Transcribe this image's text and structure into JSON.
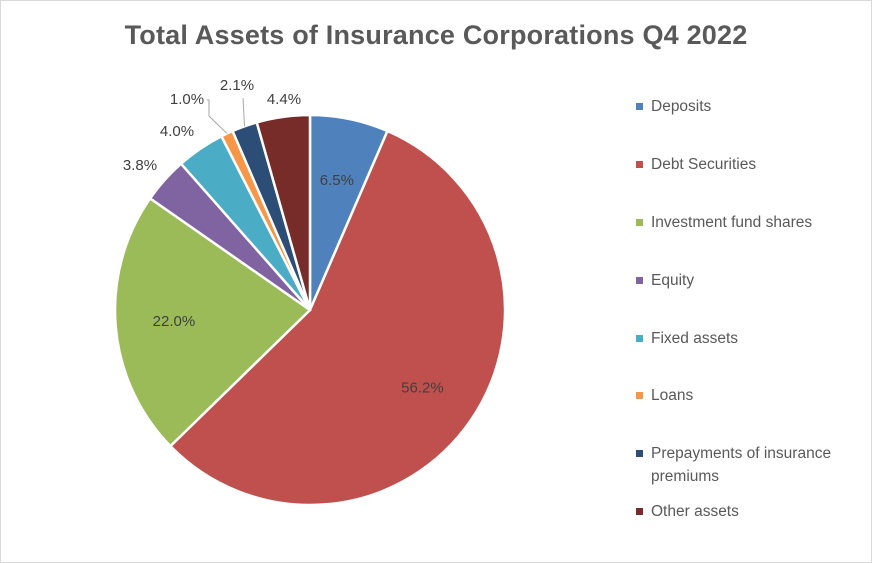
{
  "chart_data": {
    "type": "pie",
    "title": "Total Assets of Insurance Corporations Q4 2022",
    "categories": [
      "Deposits",
      "Debt Securities",
      "Investment fund shares",
      "Equity",
      "Fixed assets",
      "Loans",
      "Prepayments of insurance premiums",
      "Other assets"
    ],
    "values": [
      6.5,
      56.2,
      22.0,
      3.8,
      4.0,
      1.0,
      2.1,
      4.4
    ],
    "value_labels": [
      "6.5%",
      "56.2%",
      "22.0%",
      "3.8%",
      "4.0%",
      "1.0%",
      "2.1%",
      "4.4%"
    ],
    "colors": [
      "#4f81bd",
      "#c0504d",
      "#9bbb59",
      "#8064a2",
      "#4bacc6",
      "#f79646",
      "#2c4d75",
      "#772c2a"
    ],
    "legend_position": "right",
    "legend": [
      {
        "label": "Deposits"
      },
      {
        "label": "Debt Securities"
      },
      {
        "label": "Investment fund shares"
      },
      {
        "label": "Equity"
      },
      {
        "label": "Fixed assets"
      },
      {
        "label": "Loans"
      },
      {
        "label": "Prepayments of insurance premiums"
      },
      {
        "label": "Other assets"
      }
    ]
  }
}
